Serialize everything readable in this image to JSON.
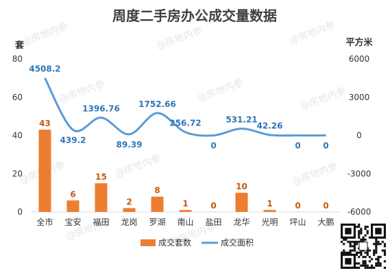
{
  "chart_data": {
    "type": "bar+line",
    "title": "周度二手房办公成交量数据",
    "y_left_label": "套",
    "y_right_label": "平方米",
    "y_left_ticks": [
      "0",
      "20",
      "40",
      "60",
      "80"
    ],
    "y_right_ticks": [
      "-6000",
      "-3000",
      "0",
      "3000",
      "6000"
    ],
    "ylim_left": [
      0,
      80
    ],
    "ylim_right": [
      -6000,
      6000
    ],
    "categories": [
      "全市",
      "宝安",
      "福田",
      "龙岗",
      "罗湖",
      "南山",
      "盐田",
      "龙华",
      "光明",
      "坪山",
      "大鹏"
    ],
    "series": [
      {
        "name": "成交套数",
        "type": "bar",
        "axis": "left",
        "color": "#ed7d31",
        "values": [
          43,
          6,
          15,
          2,
          8,
          1,
          0,
          10,
          1,
          0,
          0
        ],
        "labels": [
          "43",
          "6",
          "15",
          "2",
          "8",
          "1",
          "0",
          "10",
          "1",
          "0",
          "0"
        ]
      },
      {
        "name": "成交面积",
        "type": "line",
        "axis": "right",
        "color": "#5b9bd5",
        "values": [
          4508.2,
          439.2,
          1396.76,
          89.39,
          1752.66,
          256.72,
          0,
          531.21,
          42.26,
          0,
          0
        ],
        "labels": [
          "4508.2",
          "439.2",
          "1396.76",
          "89.39",
          "1752.66",
          "256.72",
          "0",
          "531.21",
          "42.26",
          "0",
          "0"
        ]
      }
    ],
    "legend": "bottom-center",
    "grid": false
  },
  "watermark": "@房地内参"
}
